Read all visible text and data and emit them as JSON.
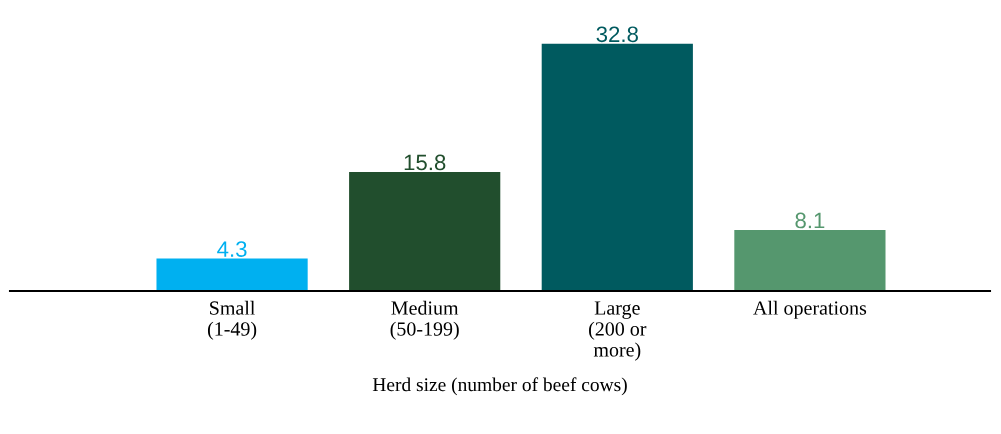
{
  "chart_data": {
    "type": "bar",
    "categories": [
      "Small\n(1-49)",
      "Medium\n(50-199)",
      "Large\n(200 or\nmore)",
      "All operations"
    ],
    "values": [
      4.3,
      15.8,
      32.8,
      8.1
    ],
    "colors": [
      "#00b0f0",
      "#214e2d",
      "#005a5f",
      "#55976e"
    ],
    "xlabel": "Herd size (number of beef cows)",
    "data_labels": true,
    "grid": false,
    "legend": false
  }
}
